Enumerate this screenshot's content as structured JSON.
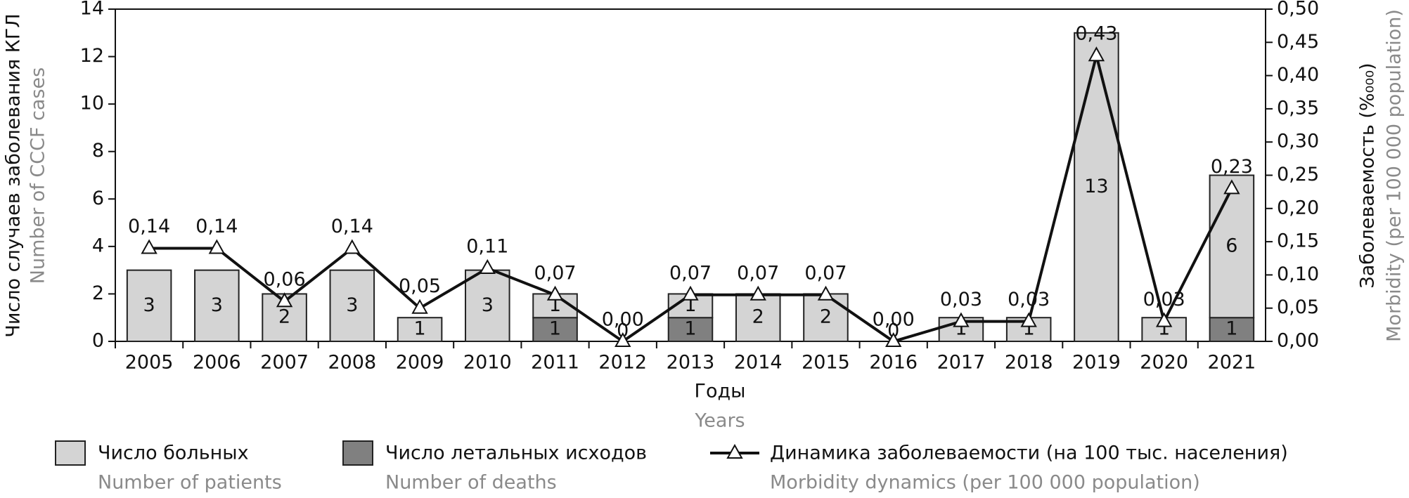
{
  "chart_data": {
    "type": "bar",
    "xlabel": "Годы",
    "xlabel_en": "Years",
    "ylabel": "Число случаев заболевания КГЛ",
    "ylabel_en": "Number of CCCF cases",
    "y2label": "Заболеваемость (%₀₀₀)",
    "y2label_en": "Morbidity (per 100 000 population)",
    "categories": [
      "2005",
      "2006",
      "2007",
      "2008",
      "2009",
      "2010",
      "2011",
      "2012",
      "2013",
      "2014",
      "2015",
      "2016",
      "2017",
      "2018",
      "2019",
      "2020",
      "2021"
    ],
    "series": [
      {
        "name": "Число больных",
        "name_en": "Number of patients",
        "color": "#d4d4d4",
        "values": [
          3,
          3,
          2,
          3,
          1,
          3,
          1,
          0,
          1,
          2,
          2,
          0,
          1,
          1,
          13,
          1,
          6
        ]
      },
      {
        "name": "Число летальных исходов",
        "name_en": "Number of deaths",
        "color": "#808080",
        "values": [
          null,
          null,
          null,
          null,
          null,
          null,
          1,
          null,
          1,
          null,
          null,
          null,
          null,
          null,
          null,
          null,
          1
        ]
      },
      {
        "name": "Динамика заболеваемости (на 100 тыс. населения)",
        "name_en": "Morbidity dynamics (per 100 000 population)",
        "color": "#111111",
        "type": "line",
        "axis": "y2",
        "values": [
          0.14,
          0.14,
          0.06,
          0.14,
          0.05,
          0.11,
          0.07,
          0.0,
          0.07,
          0.07,
          0.07,
          0.0,
          0.03,
          0.03,
          0.43,
          0.03,
          0.23
        ],
        "value_labels": [
          "0,14",
          "0,14",
          "0,06",
          "0,14",
          "0,05",
          "0,11",
          "0,07",
          "0,00",
          "0,07",
          "0,07",
          "0,07",
          "0,00",
          "0,03",
          "0,03",
          "0,43",
          "0,03",
          "0,23"
        ]
      }
    ],
    "ylim": [
      0,
      14
    ],
    "yticks": [
      0,
      2,
      4,
      6,
      8,
      10,
      12,
      14
    ],
    "y2lim": [
      0,
      0.5
    ],
    "y2ticks": [
      {
        "value": 0,
        "label": "0,00"
      },
      {
        "value": 0.05,
        "label": "0,05"
      },
      {
        "value": 0.1,
        "label": "0,10"
      },
      {
        "value": 0.15,
        "label": "0,15"
      },
      {
        "value": 0.2,
        "label": "0,20"
      },
      {
        "value": 0.25,
        "label": "0,25"
      },
      {
        "value": 0.3,
        "label": "0,30"
      },
      {
        "value": 0.35,
        "label": "0,35"
      },
      {
        "value": 0.4,
        "label": "0,40"
      },
      {
        "value": 0.45,
        "label": "0,45"
      },
      {
        "value": 0.5,
        "label": "0,50"
      }
    ],
    "grid": false
  }
}
